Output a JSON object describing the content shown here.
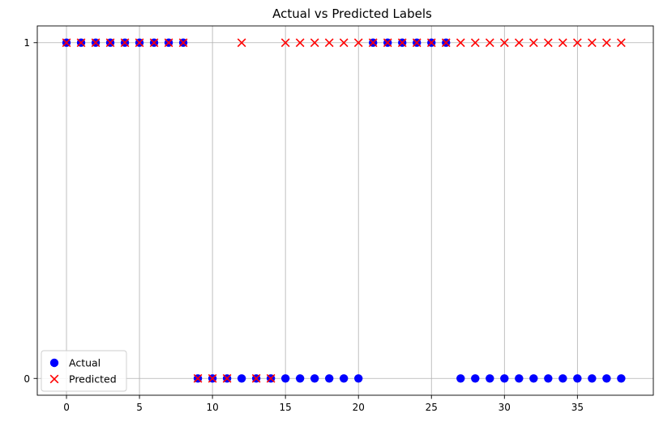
{
  "chart_data": {
    "type": "scatter",
    "title": "Actual vs Predicted Labels",
    "xlabel": "",
    "ylabel": "",
    "xlim": [
      -2,
      40.2
    ],
    "ylim": [
      -0.05,
      1.05
    ],
    "xticks": [
      0,
      5,
      10,
      15,
      20,
      25,
      30,
      35
    ],
    "yticks": [
      0,
      1
    ],
    "grid": true,
    "legend_position": "lower-left",
    "series": [
      {
        "name": "Actual",
        "marker": "circle",
        "color": "#0000ff",
        "x": [
          0,
          1,
          2,
          3,
          4,
          5,
          6,
          7,
          8,
          9,
          10,
          11,
          12,
          13,
          14,
          15,
          16,
          17,
          18,
          19,
          20,
          21,
          22,
          23,
          24,
          25,
          26,
          27,
          28,
          29,
          30,
          31,
          32,
          33,
          34,
          35,
          36,
          37,
          38
        ],
        "y": [
          1,
          1,
          1,
          1,
          1,
          1,
          1,
          1,
          1,
          0,
          0,
          0,
          0,
          0,
          0,
          0,
          0,
          0,
          0,
          0,
          0,
          1,
          1,
          1,
          1,
          1,
          1,
          0,
          0,
          0,
          0,
          0,
          0,
          0,
          0,
          0,
          0,
          0,
          0
        ]
      },
      {
        "name": "Predicted",
        "marker": "x",
        "color": "#ff0000",
        "x": [
          0,
          1,
          2,
          3,
          4,
          5,
          6,
          7,
          8,
          9,
          10,
          11,
          12,
          13,
          14,
          15,
          16,
          17,
          18,
          19,
          20,
          21,
          22,
          23,
          24,
          25,
          26,
          27,
          28,
          29,
          30,
          31,
          32,
          33,
          34,
          35,
          36,
          37,
          38
        ],
        "y": [
          1,
          1,
          1,
          1,
          1,
          1,
          1,
          1,
          1,
          0,
          0,
          0,
          1,
          0,
          0,
          1,
          1,
          1,
          1,
          1,
          1,
          1,
          1,
          1,
          1,
          1,
          1,
          1,
          1,
          1,
          1,
          1,
          1,
          1,
          1,
          1,
          1,
          1,
          1
        ]
      }
    ]
  }
}
